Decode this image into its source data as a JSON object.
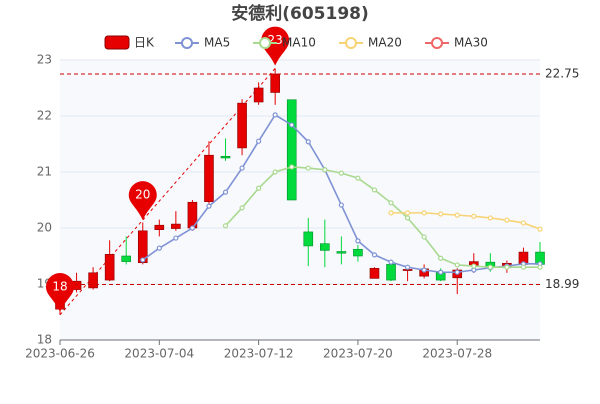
{
  "chart_data": {
    "type": "candlestick",
    "title": "安德利(605198)",
    "categories": [
      "2023-06-26",
      null,
      null,
      null,
      null,
      null,
      "2023-07-04",
      null,
      null,
      null,
      null,
      null,
      "2023-07-12",
      null,
      null,
      null,
      null,
      null,
      "2023-07-20",
      null,
      null,
      null,
      null,
      null,
      "2023-07-28",
      null,
      null,
      null,
      null,
      null
    ],
    "candles": {
      "name": "日K",
      "up_color": "#e60000",
      "down_color": "#00da3c",
      "open": [
        18.55,
        18.9,
        18.93,
        19.07,
        19.5,
        19.38,
        19.97,
        19.99,
        20.0,
        20.47,
        21.28,
        21.43,
        22.25,
        22.42,
        22.29,
        19.93,
        19.72,
        19.58,
        19.62,
        19.1,
        19.35,
        19.24,
        19.14,
        19.2,
        19.11,
        19.32,
        19.39,
        19.29,
        19.35,
        19.57
      ],
      "close": [
        18.95,
        19.05,
        19.2,
        19.53,
        19.4,
        19.95,
        20.05,
        20.07,
        20.46,
        21.3,
        21.25,
        22.23,
        22.5,
        22.75,
        20.5,
        19.68,
        19.6,
        19.55,
        19.5,
        19.28,
        19.07,
        19.26,
        19.27,
        19.07,
        19.25,
        19.4,
        19.3,
        19.37,
        19.57,
        19.35
      ],
      "low": [
        18.45,
        18.85,
        18.9,
        19.05,
        19.35,
        19.35,
        19.85,
        19.95,
        19.95,
        20.4,
        21.2,
        21.3,
        22.2,
        22.2,
        20.5,
        19.32,
        19.3,
        19.35,
        19.4,
        19.1,
        19.05,
        19.05,
        19.1,
        19.05,
        18.82,
        19.2,
        19.22,
        19.2,
        19.33,
        19.3
      ],
      "high": [
        19.05,
        19.2,
        19.3,
        19.78,
        19.85,
        20.1,
        20.15,
        20.3,
        20.5,
        21.55,
        21.6,
        22.3,
        22.6,
        22.85,
        22.29,
        20.18,
        20.15,
        19.85,
        19.7,
        19.3,
        19.4,
        19.3,
        19.35,
        19.28,
        19.28,
        19.55,
        19.55,
        19.42,
        19.65,
        19.75
      ]
    },
    "series": [
      {
        "name": "MA5",
        "color": "#7f92d4",
        "values": [
          null,
          null,
          null,
          null,
          null,
          19.43,
          19.64,
          19.82,
          20.0,
          20.39,
          20.64,
          21.07,
          21.55,
          22.02,
          21.84,
          21.54,
          21.04,
          20.41,
          19.77,
          19.52,
          19.39,
          19.3,
          19.25,
          19.21,
          19.21,
          19.25,
          19.29,
          19.32,
          19.36,
          19.36
        ]
      },
      {
        "name": "MA10",
        "color": "#a8d98f",
        "values": [
          null,
          null,
          null,
          null,
          null,
          null,
          null,
          null,
          null,
          null,
          20.04,
          20.36,
          20.71,
          21.0,
          21.09,
          21.07,
          21.04,
          20.98,
          20.89,
          20.68,
          20.45,
          20.18,
          19.84,
          19.46,
          19.34,
          19.32,
          19.3,
          19.3,
          19.3,
          19.3
        ]
      },
      {
        "name": "MA20",
        "color": "#f7d374",
        "values": [
          null,
          null,
          null,
          null,
          null,
          null,
          null,
          null,
          null,
          null,
          null,
          null,
          null,
          null,
          null,
          null,
          null,
          null,
          null,
          null,
          20.27,
          20.27,
          20.27,
          20.25,
          20.23,
          20.21,
          20.18,
          20.14,
          20.09,
          19.98
        ]
      },
      {
        "name": "MA30",
        "color": "#ee6666",
        "values": [
          null,
          null,
          null,
          null,
          null,
          null,
          null,
          null,
          null,
          null,
          null,
          null,
          null,
          null,
          null,
          null,
          null,
          null,
          null,
          null,
          null,
          null,
          null,
          null,
          null,
          null,
          null,
          null,
          null,
          null
        ]
      }
    ],
    "hlines": [
      22.75,
      18.99
    ],
    "annotations": [
      {
        "label": "18",
        "value": 18.5
      },
      {
        "label": "20",
        "value": 20.14
      },
      {
        "label": "23",
        "value": 22.9
      }
    ],
    "ylim": [
      18,
      23
    ],
    "yticks": [
      18,
      19,
      20,
      21,
      22,
      23
    ],
    "grid": true
  }
}
